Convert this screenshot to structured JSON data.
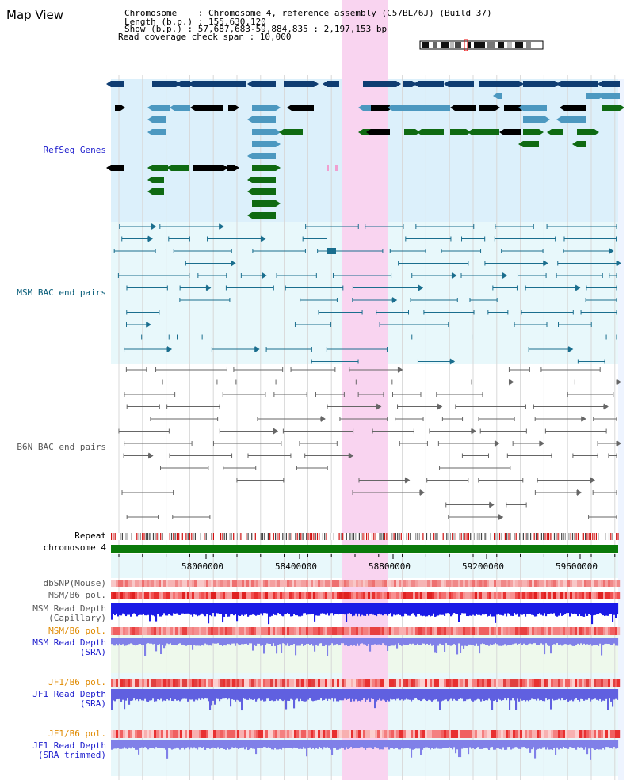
{
  "title": "Map View",
  "info": {
    "chromosome": "Chromosome    : Chromosome 4, reference assembly (C57BL/6J) (Build 37)",
    "length": "Length (b.p.) : 155,630,120",
    "show": "Show (b.p.) : 57,687,683-59,884,835 : 2,197,153 bp",
    "coverage": "Read coverage check span : 10,000"
  },
  "tracks": {
    "refseq": "RefSeq Genes",
    "msm_bac": "MSM BAC end pairs",
    "b6n_bac": "B6N BAC end pairs",
    "repeat": "Repeat",
    "chromosome": "chromosome 4",
    "dbsnp": "dbSNP(Mouse)",
    "msm_b6_pol_1": "MSM/B6 pol.",
    "msm_depth_cap": "MSM Read Depth\n(Capillary)",
    "msm_b6_pol_2": "MSM/B6 pol.",
    "msm_depth_sra": "MSM Read Depth\n(SRA)",
    "jf1_b6_pol_1": "JF1/B6 pol.",
    "jf1_depth_sra": "JF1 Read Depth\n(SRA)",
    "jf1_b6_pol_2": "JF1/B6 pol.",
    "jf1_depth_trim": "JF1 Read Depth\n(SRA trimmed)"
  },
  "axis": {
    "ticks": [
      "58000000",
      "58400000",
      "58800000",
      "59200000",
      "59600000"
    ]
  },
  "colors": {
    "highlight": "#f9d4f0",
    "refseq_bg": "#dcf0fb",
    "msm_bg": "#e8f8fb",
    "gene_dark": "#0f3d72",
    "gene_light": "#4c98c0",
    "gene_green": "#0f6a12",
    "chromosome": "#0a7a0a",
    "label_blue": "#1a1acc",
    "label_teal": "#0a5e7a",
    "label_gray": "#555555",
    "label_orange": "#e08a00"
  }
}
